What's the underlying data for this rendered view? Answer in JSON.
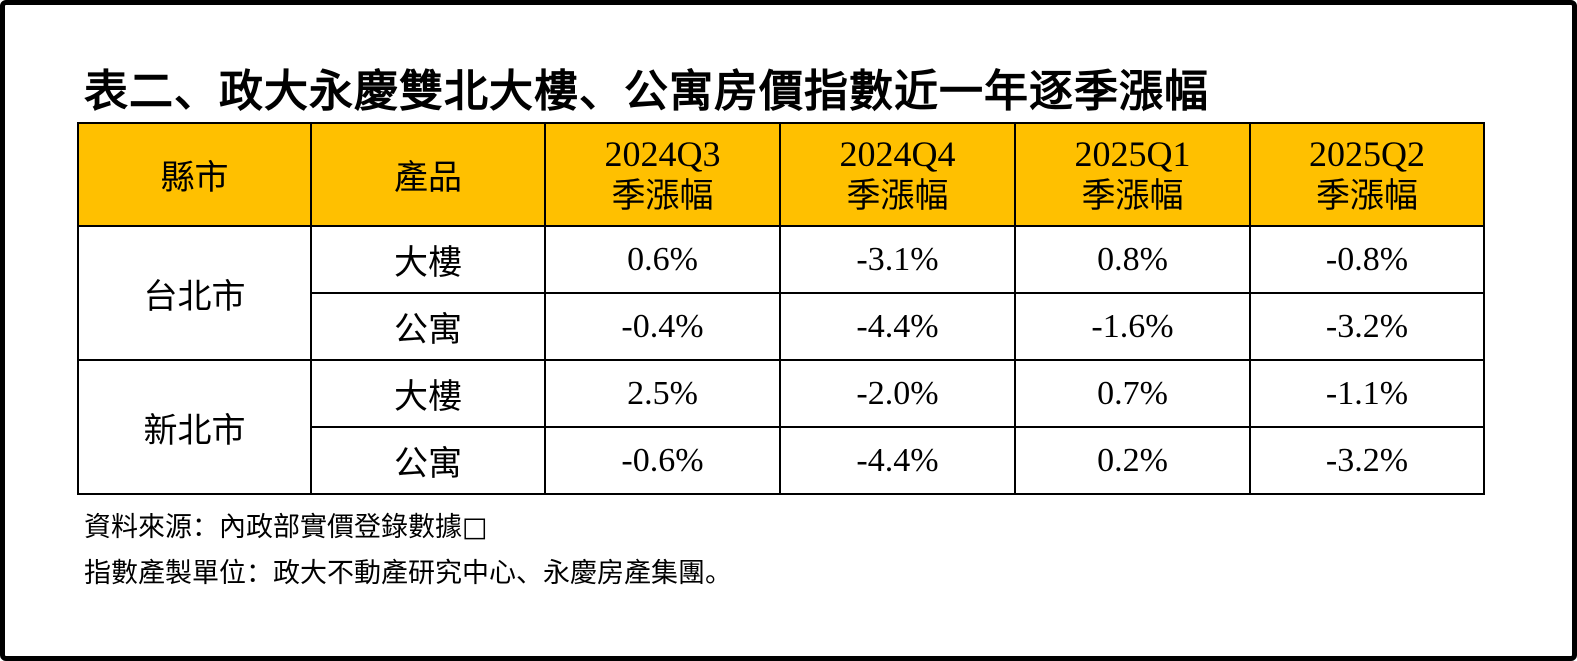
{
  "title": "表二、政大永慶雙北大樓、公寓房價指數近一年逐季漲幅",
  "table": {
    "headers": {
      "city": "縣市",
      "product": "產品",
      "quarters": [
        {
          "period": "2024Q3",
          "label": "季漲幅"
        },
        {
          "period": "2024Q4",
          "label": "季漲幅"
        },
        {
          "period": "2025Q1",
          "label": "季漲幅"
        },
        {
          "period": "2025Q2",
          "label": "季漲幅"
        }
      ]
    },
    "groups": [
      {
        "city": "台北市",
        "rows": [
          {
            "product": "大樓",
            "values": [
              "0.6%",
              "-3.1%",
              "0.8%",
              "-0.8%"
            ]
          },
          {
            "product": "公寓",
            "values": [
              "-0.4%",
              "-4.4%",
              "-1.6%",
              "-3.2%"
            ]
          }
        ]
      },
      {
        "city": "新北市",
        "rows": [
          {
            "product": "大樓",
            "values": [
              "2.5%",
              "-2.0%",
              "0.7%",
              "-1.1%"
            ]
          },
          {
            "product": "公寓",
            "values": [
              "-0.6%",
              "-4.4%",
              "0.2%",
              "-3.2%"
            ]
          }
        ]
      }
    ]
  },
  "notes": {
    "source": "資料來源：內政部實價登錄數據□",
    "producer": "指數產製單位：政大不動產研究中心、永慶房產集團。"
  },
  "colors": {
    "header_bg": "#ffc000",
    "border": "#000000"
  }
}
